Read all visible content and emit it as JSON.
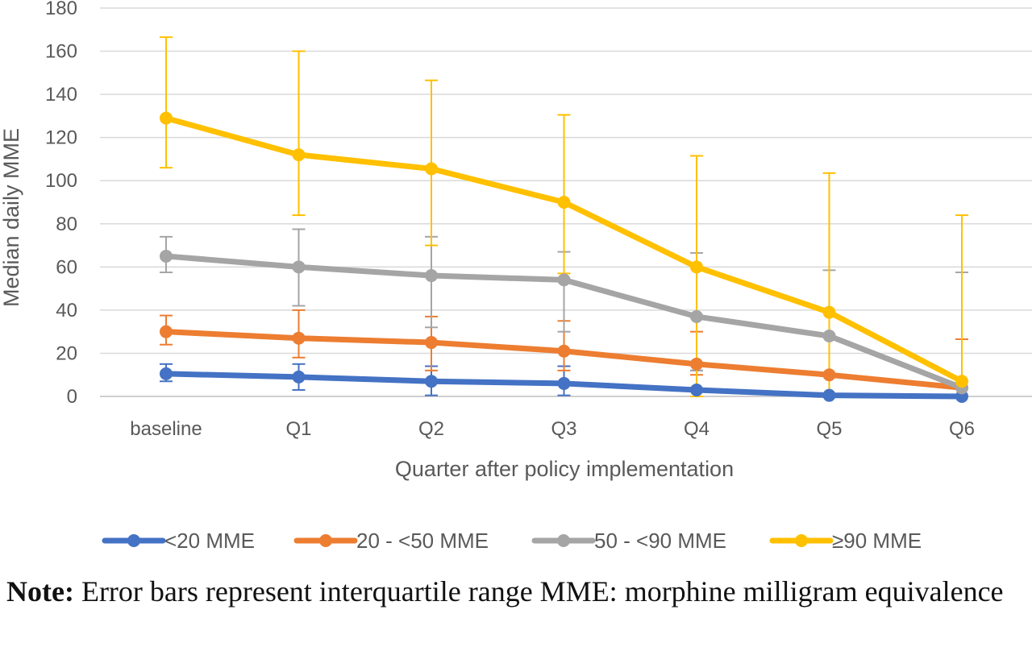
{
  "chart_data": {
    "type": "line",
    "title": "",
    "xlabel": "Quarter after policy implementation",
    "ylabel": "Median daily MME",
    "ylim": [
      0,
      180
    ],
    "yticks": [
      0,
      20,
      40,
      60,
      80,
      100,
      120,
      140,
      160,
      180
    ],
    "categories": [
      "baseline",
      "Q1",
      "Q2",
      "Q3",
      "Q4",
      "Q5",
      "Q6"
    ],
    "grid": true,
    "legend_position": "bottom",
    "error_bars": "interquartile range",
    "series": [
      {
        "name": "<20 MME",
        "color": "#4472C4",
        "values": [
          10.5,
          9,
          7,
          6,
          3,
          0.5,
          0
        ],
        "lower": [
          7,
          3,
          0.5,
          0.5,
          0,
          0,
          0
        ],
        "upper": [
          15,
          15,
          14,
          14,
          12,
          0,
          0
        ]
      },
      {
        "name": "20 - <50 MME",
        "color": "#ED7D31",
        "values": [
          30,
          27,
          25,
          21,
          15,
          10,
          4
        ],
        "lower": [
          24,
          18,
          12,
          12,
          10,
          10,
          4
        ],
        "upper": [
          37.5,
          40,
          37,
          35,
          30,
          10,
          26.5
        ]
      },
      {
        "name": "50 - <90 MME",
        "color": "#A5A5A5",
        "values": [
          65,
          60,
          56,
          54,
          37,
          28,
          4
        ],
        "lower": [
          57.5,
          42,
          32,
          30,
          12,
          28,
          0
        ],
        "upper": [
          74,
          77.5,
          74,
          67,
          66.5,
          58.5,
          57.5
        ]
      },
      {
        "name": "≥90 MME",
        "color": "#FFC000",
        "values": [
          129,
          112,
          105.5,
          90,
          60,
          39,
          7
        ],
        "lower": [
          106,
          84,
          70,
          57,
          0,
          0,
          0
        ],
        "upper": [
          166.5,
          160,
          146.5,
          130.5,
          111.5,
          103.5,
          84
        ]
      }
    ]
  },
  "note": {
    "label": "Note:",
    "text": " Error bars represent interquartile range MME: morphine milligram equivalence"
  }
}
